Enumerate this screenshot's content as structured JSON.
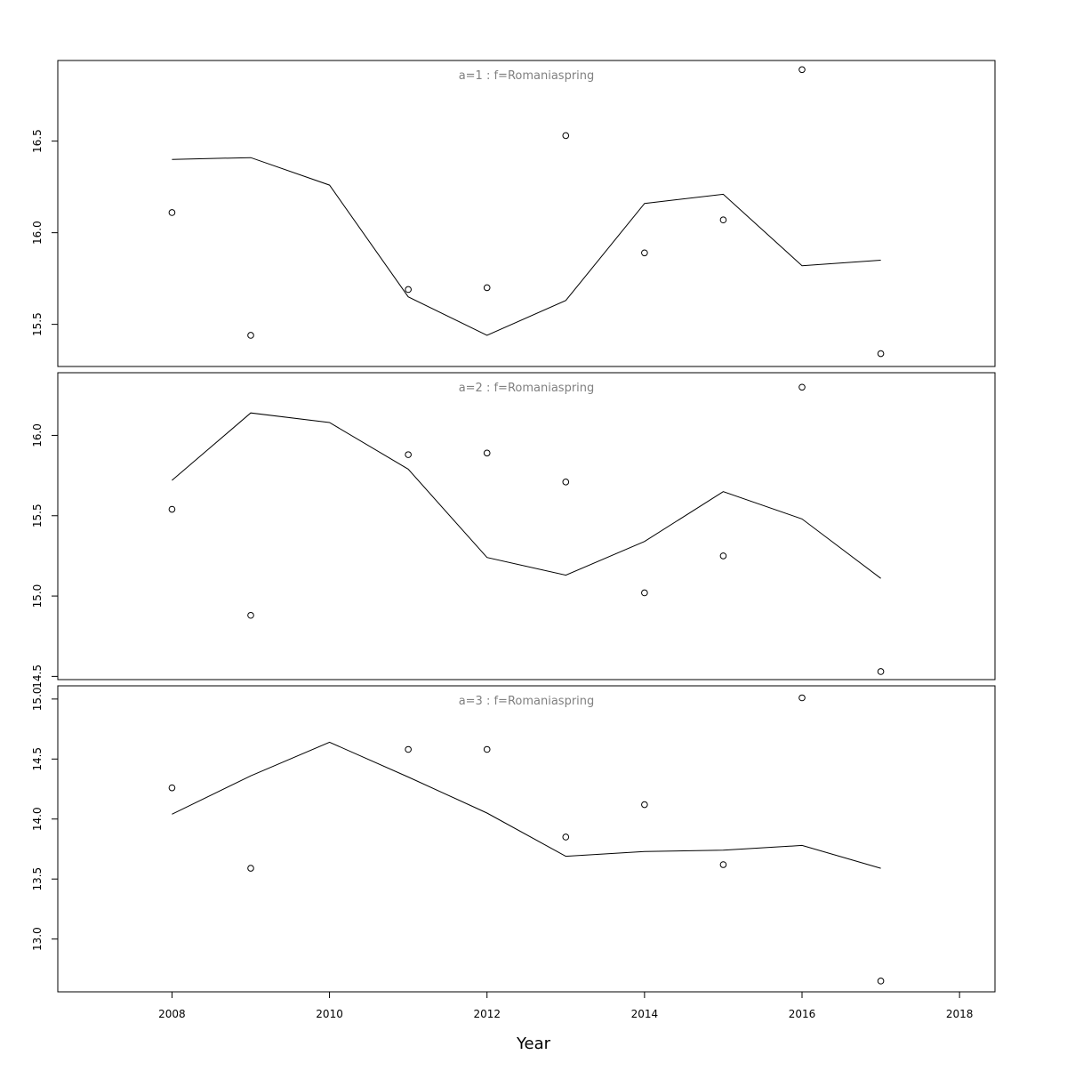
{
  "chart_data": {
    "type": "line",
    "xlabel": "Year",
    "x_ticks": [
      2008,
      2010,
      2012,
      2014,
      2016,
      2018
    ],
    "xlim": [
      2006.55,
      2018.45
    ],
    "panels": [
      {
        "label": "a=1  :  f=Romaniaspring",
        "ylim": [
          15.27,
          16.94
        ],
        "y_ticks": [
          15.5,
          16.0,
          16.5
        ],
        "y_tick_labels": [
          "15.5",
          "16.0",
          "16.5"
        ],
        "series": [
          {
            "kind": "line",
            "x": [
              2008,
              2009,
              2010,
              2011,
              2012,
              2013,
              2014,
              2015,
              2016,
              2017
            ],
            "values": [
              16.4,
              16.41,
              16.26,
              15.65,
              15.44,
              15.63,
              16.16,
              16.21,
              15.82,
              15.85
            ]
          },
          {
            "kind": "points",
            "x": [
              2008,
              2009,
              2011,
              2012,
              2013,
              2014,
              2015,
              2016,
              2017
            ],
            "values": [
              16.11,
              15.44,
              15.69,
              15.7,
              16.53,
              15.89,
              16.07,
              16.89,
              15.34
            ]
          }
        ]
      },
      {
        "label": "a=2  :  f=Romaniaspring",
        "ylim": [
          14.48,
          16.39
        ],
        "y_ticks": [
          14.5,
          15.0,
          15.5,
          16.0
        ],
        "y_tick_labels": [
          "14.5",
          "15.0",
          "15.5",
          "16.0"
        ],
        "series": [
          {
            "kind": "line",
            "x": [
              2008,
              2009,
              2010,
              2011,
              2012,
              2013,
              2014,
              2015,
              2016,
              2017
            ],
            "values": [
              15.72,
              16.14,
              16.08,
              15.79,
              15.24,
              15.13,
              15.34,
              15.65,
              15.48,
              15.11
            ]
          },
          {
            "kind": "points",
            "x": [
              2008,
              2009,
              2011,
              2012,
              2013,
              2014,
              2015,
              2016,
              2017
            ],
            "values": [
              15.54,
              14.88,
              15.88,
              15.89,
              15.71,
              15.02,
              15.25,
              16.3,
              14.53
            ]
          }
        ]
      },
      {
        "label": "a=3  :  f=Romaniaspring",
        "ylim": [
          12.56,
          15.11
        ],
        "y_ticks": [
          13.0,
          13.5,
          14.0,
          14.5,
          15.0
        ],
        "y_tick_labels": [
          "13.0",
          "13.5",
          "14.0",
          "14.5",
          "15.0"
        ],
        "series": [
          {
            "kind": "line",
            "x": [
              2008,
              2009,
              2010,
              2011,
              2012,
              2013,
              2014,
              2015,
              2016,
              2017
            ],
            "values": [
              14.04,
              14.36,
              14.64,
              14.35,
              14.05,
              13.69,
              13.73,
              13.74,
              13.78,
              13.59
            ]
          },
          {
            "kind": "points",
            "x": [
              2008,
              2009,
              2011,
              2012,
              2013,
              2014,
              2015,
              2016,
              2017
            ],
            "values": [
              14.26,
              13.59,
              14.58,
              14.58,
              13.85,
              14.12,
              13.62,
              15.01,
              12.65
            ]
          }
        ]
      }
    ]
  }
}
